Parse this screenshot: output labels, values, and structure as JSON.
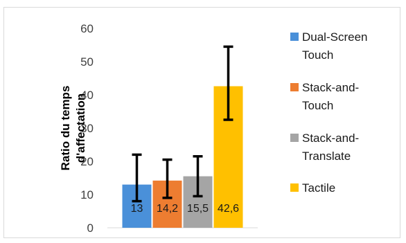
{
  "chart_data": {
    "type": "bar",
    "title": "",
    "xlabel": "",
    "ylabel": [
      "Ratio du temps",
      "d'affectation"
    ],
    "ylim": [
      0,
      60
    ],
    "yticks": [
      0,
      10,
      20,
      30,
      40,
      50,
      60
    ],
    "grid": false,
    "legend_position": "right",
    "categories": [
      "Dual-Screen Touch",
      "Stack-and-Touch",
      "Stack-and-Translate",
      "Tactile"
    ],
    "values": [
      13,
      14.2,
      15.5,
      42.6
    ],
    "value_labels": [
      "13",
      "14,2",
      "15,5",
      "42,6"
    ],
    "error_bars": [
      {
        "low": 8,
        "high": 22
      },
      {
        "low": 9,
        "high": 20.5
      },
      {
        "low": 9.5,
        "high": 21.5
      },
      {
        "low": 32.5,
        "high": 54.5
      }
    ],
    "colors": [
      "#4a90d9",
      "#ed7d31",
      "#a5a5a5",
      "#ffc000"
    ],
    "legend": [
      {
        "lines": [
          "Dual-Screen",
          "Touch"
        ],
        "color": "#4a90d9"
      },
      {
        "lines": [
          "Stack-and-",
          "Touch"
        ],
        "color": "#ed7d31"
      },
      {
        "lines": [
          "Stack-and-",
          "Translate"
        ],
        "color": "#a5a5a5"
      },
      {
        "lines": [
          "Tactile"
        ],
        "color": "#ffc000"
      }
    ]
  }
}
